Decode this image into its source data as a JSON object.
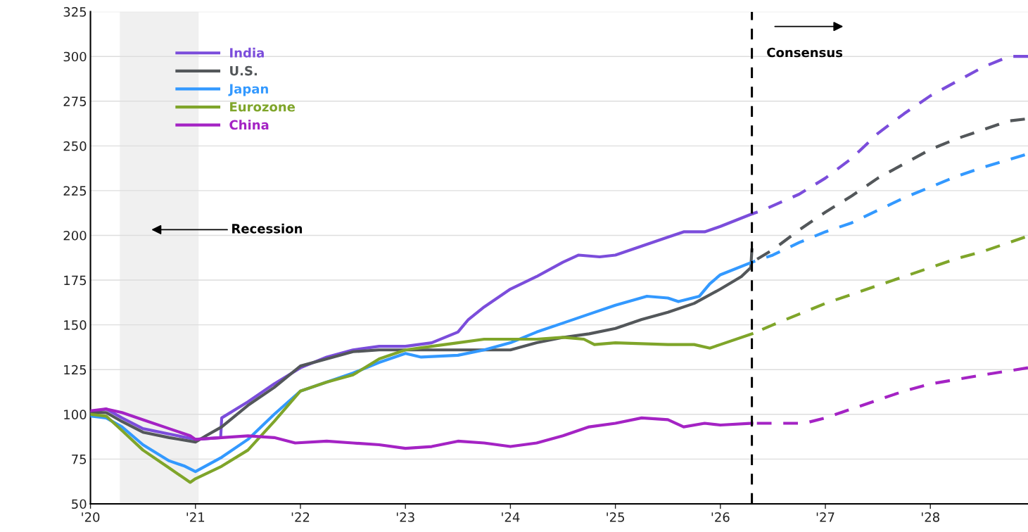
{
  "chart_data": {
    "type": "line",
    "annotations": [
      "Recession",
      "Consensus"
    ],
    "xlim": [
      2020,
      2028.93
    ],
    "ylim": [
      50,
      325
    ],
    "xticks": [
      {
        "value": 2020,
        "label": "'20"
      },
      {
        "value": 2021,
        "label": "'21"
      },
      {
        "value": 2022,
        "label": "'22"
      },
      {
        "value": 2023,
        "label": "'23"
      },
      {
        "value": 2024,
        "label": "'24"
      },
      {
        "value": 2025,
        "label": "'25"
      },
      {
        "value": 2026,
        "label": "'26"
      },
      {
        "value": 2027,
        "label": "'27"
      },
      {
        "value": 2028,
        "label": "'28"
      }
    ],
    "yticks": [
      50,
      75,
      100,
      125,
      150,
      175,
      200,
      225,
      250,
      275,
      300,
      325
    ],
    "grid": "y",
    "legend": "top left",
    "marker": "none",
    "bands": [
      {
        "axis": "x",
        "from": 2020.28,
        "to": 2021.03,
        "color": "#f0f0f0"
      }
    ],
    "ref_lines": [
      {
        "axis": "x",
        "value": 2026.3,
        "color": "#000000",
        "line_style": "dashed"
      }
    ],
    "series": [
      {
        "name": "India",
        "color": "#7b4ddb",
        "line_style": "solid",
        "x": [
          2020.0,
          2020.15,
          2020.3,
          2020.5,
          2020.75,
          2021.0,
          2021.24,
          2021.25,
          2021.5,
          2021.75,
          2022.0,
          2022.25,
          2022.5,
          2022.75,
          2023.0,
          2023.25,
          2023.5,
          2023.6,
          2023.75,
          2024.0,
          2024.25,
          2024.5,
          2024.65,
          2024.85,
          2025.0,
          2025.25,
          2025.5,
          2025.65,
          2025.85,
          2026.0,
          2026.3
        ],
        "values": [
          101,
          103,
          98,
          92,
          89,
          86,
          87,
          98,
          107,
          117,
          126,
          132,
          136,
          138,
          138,
          140,
          146,
          153,
          160,
          170,
          177,
          185,
          189,
          188,
          189,
          194,
          199,
          202,
          202,
          205,
          212
        ]
      },
      {
        "name": "U.S.",
        "color": "#53575a",
        "line_style": "solid",
        "x": [
          2020.0,
          2020.15,
          2020.3,
          2020.5,
          2020.75,
          2021.0,
          2021.1,
          2021.25,
          2021.5,
          2021.75,
          2022.0,
          2022.25,
          2022.5,
          2022.75,
          2023.0,
          2023.25,
          2023.5,
          2023.75,
          2024.0,
          2024.25,
          2024.5,
          2024.75,
          2025.0,
          2025.25,
          2025.5,
          2025.75,
          2026.0,
          2026.2,
          2026.29,
          2026.3
        ],
        "values": [
          101,
          101,
          96,
          90,
          87,
          84.5,
          88,
          93,
          105,
          115,
          127,
          131,
          135,
          136,
          136,
          136,
          136,
          136,
          136,
          140,
          143,
          145,
          148,
          153,
          157,
          162,
          170,
          177,
          182,
          192
        ]
      },
      {
        "name": "Japan",
        "color": "#3399ff",
        "line_style": "solid",
        "x": [
          2020.0,
          2020.15,
          2020.3,
          2020.5,
          2020.75,
          2020.9,
          2021.0,
          2021.25,
          2021.5,
          2021.75,
          2022.0,
          2022.25,
          2022.5,
          2022.75,
          2023.0,
          2023.15,
          2023.5,
          2023.75,
          2024.0,
          2024.25,
          2024.5,
          2024.75,
          2025.0,
          2025.3,
          2025.5,
          2025.6,
          2025.8,
          2025.9,
          2026.0,
          2026.3
        ],
        "values": [
          99,
          98,
          93,
          83,
          74,
          71,
          68,
          76,
          86,
          100,
          113,
          118,
          123,
          129,
          134,
          132,
          133,
          136,
          140,
          146,
          151,
          156,
          161,
          166,
          165,
          163,
          166,
          173,
          178,
          185
        ]
      },
      {
        "name": "Eurozone",
        "color": "#7fa52a",
        "line_style": "solid",
        "x": [
          2020.0,
          2020.15,
          2020.3,
          2020.5,
          2020.75,
          2020.95,
          2021.0,
          2021.25,
          2021.5,
          2021.75,
          2022.0,
          2022.25,
          2022.5,
          2022.75,
          2023.0,
          2023.25,
          2023.5,
          2023.75,
          2024.0,
          2024.25,
          2024.5,
          2024.7,
          2024.8,
          2025.0,
          2025.5,
          2025.75,
          2025.9,
          2026.0,
          2026.3
        ],
        "values": [
          100,
          99,
          91,
          80,
          70,
          62,
          64,
          71,
          80,
          96,
          113,
          118,
          122,
          131,
          136,
          138,
          140,
          142,
          142,
          142,
          143,
          142,
          139,
          140,
          139,
          139,
          137,
          139,
          145
        ]
      },
      {
        "name": "China",
        "color": "#a423c4",
        "line_style": "solid",
        "x": [
          2020.0,
          2020.15,
          2020.3,
          2020.5,
          2020.75,
          2020.95,
          2021.0,
          2021.25,
          2021.5,
          2021.75,
          2021.95,
          2022.25,
          2022.5,
          2022.75,
          2023.0,
          2023.25,
          2023.5,
          2023.75,
          2024.0,
          2024.25,
          2024.5,
          2024.75,
          2025.0,
          2025.25,
          2025.5,
          2025.65,
          2025.85,
          2026.0,
          2026.3
        ],
        "values": [
          102,
          103,
          101,
          97,
          92,
          88,
          86,
          87,
          88,
          87,
          84,
          85,
          84,
          83,
          81,
          82,
          85,
          84,
          82,
          84,
          88,
          93,
          95,
          98,
          97,
          93,
          95,
          94,
          95
        ]
      },
      {
        "color": "#7b4ddb",
        "line_style": "dashed",
        "x": [
          2026.3,
          2026.4,
          2026.75,
          2027.0,
          2027.25,
          2027.5,
          2027.75,
          2028.0,
          2028.25,
          2028.5,
          2028.75,
          2028.93
        ],
        "values": [
          212,
          214,
          223,
          232,
          243,
          257,
          268,
          278,
          286,
          294,
          300,
          300
        ]
      },
      {
        "color": "#53575a",
        "line_style": "dashed",
        "x": [
          2026.3,
          2026.5,
          2026.75,
          2027.0,
          2027.25,
          2027.5,
          2027.75,
          2028.0,
          2028.25,
          2028.5,
          2028.75,
          2028.9
        ],
        "values": [
          185,
          192,
          203,
          213,
          222,
          232,
          240,
          248,
          254,
          259,
          264,
          265
        ]
      },
      {
        "color": "#3399ff",
        "line_style": "dashed",
        "x": [
          2026.3,
          2026.5,
          2026.75,
          2027.0,
          2027.25,
          2027.5,
          2027.75,
          2028.0,
          2028.25,
          2028.5,
          2028.9
        ],
        "values": [
          185,
          189,
          196,
          202,
          207,
          214,
          221,
          227,
          233,
          238,
          245
        ]
      },
      {
        "color": "#7fa52a",
        "line_style": "dashed",
        "x": [
          2026.3,
          2026.5,
          2026.75,
          2027.0,
          2027.25,
          2027.5,
          2027.75,
          2028.0,
          2028.25,
          2028.5,
          2028.9
        ],
        "values": [
          145,
          150,
          156,
          162,
          167,
          172,
          177,
          182,
          187,
          191,
          199
        ]
      },
      {
        "color": "#a423c4",
        "line_style": "dashed",
        "x": [
          2026.3,
          2026.5,
          2026.8,
          2027.0,
          2027.25,
          2027.5,
          2027.75,
          2028.0,
          2028.5,
          2028.93
        ],
        "values": [
          95,
          95,
          95,
          98,
          103,
          108,
          113,
          117,
          122,
          126
        ]
      }
    ]
  }
}
